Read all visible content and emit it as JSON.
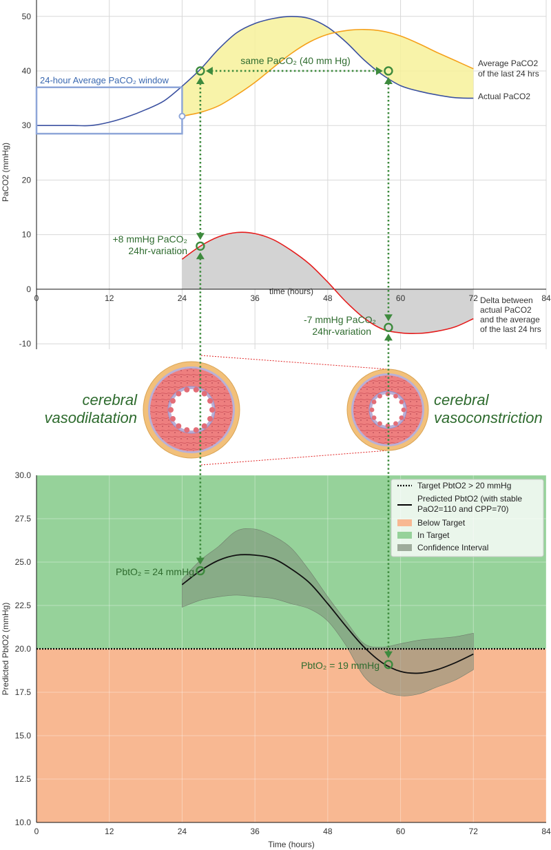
{
  "colors": {
    "actual": "#3a50a0",
    "average": "#f5a01a",
    "band": "#f7f19a",
    "delta": "#e51c1c",
    "delta_fill": "#d3d3d3",
    "ann": "#3d8a3d",
    "in_target": "#96d29a",
    "below_target": "#f8b892",
    "ci": "#7d8c79",
    "window": "#8ea6d8"
  },
  "chart_data": [
    {
      "type": "line",
      "id": "top",
      "xlabel": "time (hours)",
      "ylabel": "PaCO2 (mmHg)",
      "xlim": [
        0,
        84
      ],
      "ylim": [
        -11,
        53
      ],
      "xticks": [
        0,
        12,
        24,
        36,
        48,
        60,
        72,
        84
      ],
      "yticks": [
        -10,
        0,
        10,
        20,
        30,
        40,
        50
      ],
      "series": [
        {
          "name": "Actual PaCO2",
          "x": [
            0,
            3,
            6,
            9,
            12,
            15,
            18,
            21,
            24,
            27,
            30,
            33,
            36,
            39,
            42,
            45,
            48,
            51,
            54,
            57,
            60,
            63,
            66,
            69,
            72
          ],
          "y": [
            30,
            30,
            30,
            30,
            30.6,
            31.6,
            32.9,
            34.5,
            37.2,
            40.3,
            44,
            47,
            48.7,
            49.6,
            50,
            49.6,
            48,
            45.3,
            42,
            39.3,
            37.3,
            36.3,
            35.6,
            35.1,
            35
          ]
        },
        {
          "name": "Average PaCO2 of the last 24 hrs",
          "x": [
            24,
            27,
            30,
            33,
            36,
            39,
            42,
            45,
            48,
            51,
            54,
            57,
            60,
            63,
            66,
            69,
            72
          ],
          "y": [
            31.7,
            32.4,
            33.6,
            35.6,
            37.9,
            40.6,
            43.2,
            45.3,
            46.7,
            47.4,
            47.6,
            47.3,
            46.4,
            45,
            43.4,
            41.9,
            40.4
          ]
        },
        {
          "name": "Delta between actual PaCO2 and the average of the last 24 hrs",
          "x": [
            24,
            27,
            30,
            33,
            36,
            39,
            42,
            45,
            48,
            51,
            54,
            57,
            60,
            63,
            66,
            69,
            72
          ],
          "y": [
            5.5,
            7.9,
            9.6,
            10.4,
            10.2,
            9.1,
            7.1,
            4.6,
            1.3,
            -2.3,
            -5.3,
            -7.3,
            -8,
            -8.1,
            -7.7,
            -6.9,
            -5.4
          ]
        }
      ],
      "window": {
        "x": [
          0,
          24
        ],
        "y": [
          28.5,
          37
        ]
      },
      "labels": {
        "avg_line1": "Average PaCO2",
        "avg_line2": "of the last 24 hrs",
        "actual": "Actual PaCO2",
        "delta_l1": "Delta between",
        "delta_l2": "actual PaCO2",
        "delta_l3": "and the average",
        "delta_l4": "of the last 24 hrs",
        "window": "24-hour Average PaCO₂ window",
        "same": "same PaCO₂ (40 mm Hg)",
        "plus8_l1": "+8 mmHg PaCO₂",
        "plus8_l2": "24hr-variation",
        "minus7_l1": "-7 mmHg PaCO₂",
        "minus7_l2": "24hr-variation"
      },
      "markers": [
        {
          "x": 27,
          "y": 40
        },
        {
          "x": 58,
          "y": 40
        },
        {
          "x": 27,
          "y": 7.9
        },
        {
          "x": 58,
          "y": -7
        }
      ]
    },
    {
      "type": "line",
      "id": "bottom",
      "xlabel": "Time (hours)",
      "ylabel": "Predicted PbtO2 (mmHg)",
      "xlim": [
        0,
        84
      ],
      "ylim": [
        10,
        30
      ],
      "xticks": [
        0,
        12,
        24,
        36,
        48,
        60,
        72,
        84
      ],
      "yticks": [
        10.0,
        12.5,
        15.0,
        17.5,
        20.0,
        22.5,
        25.0,
        27.5,
        30.0
      ],
      "target": 20,
      "series": [
        {
          "name": "Predicted PbtO2 (with stable PaO2=110 and CPP=70)",
          "x": [
            24,
            27,
            30,
            33,
            36,
            39,
            42,
            45,
            48,
            51,
            54,
            57,
            60,
            63,
            66,
            69,
            72
          ],
          "y": [
            23.7,
            24.5,
            25.1,
            25.4,
            25.4,
            25.2,
            24.6,
            23.8,
            22.6,
            21.3,
            20.1,
            19.2,
            18.7,
            18.6,
            18.8,
            19.2,
            19.7
          ]
        }
      ],
      "ci_upper": [
        24,
        25.1,
        25.9,
        26.8,
        26.9,
        26.5,
        25.8,
        24.5,
        23.0,
        21.6,
        20.3,
        20.1,
        20.3,
        20.5,
        20.6,
        20.7,
        20.9
      ],
      "ci_lower": [
        22.4,
        22.8,
        23.0,
        23.1,
        23.0,
        22.9,
        22.6,
        22.3,
        21.6,
        20.2,
        18.4,
        17.6,
        17.3,
        17.4,
        17.8,
        18.2,
        18.8
      ],
      "legend": {
        "placement": "top-right",
        "target": "Target PbtO2 > 20 mmHg",
        "pred_l1": "Predicted PbtO2 (with stable",
        "pred_l2": "PaO2=110 and CPP=70)",
        "below": "Below Target",
        "in": "In Target",
        "ci": "Confidence Interval"
      },
      "markers": [
        {
          "x": 27,
          "y": 24.5
        },
        {
          "x": 58,
          "y": 19.1
        }
      ],
      "labels": {
        "pbt24": "PbtO₂ = 24 mmHg",
        "pbt19": "PbtO₂ = 19 mmHg"
      }
    }
  ],
  "vessels": {
    "dilate": "cerebral vasodilatation",
    "dilate_l1": "cerebral",
    "dilate_l2": "vasodilatation",
    "constrict": "cerebral vasoconstriction",
    "constrict_l1": "cerebral",
    "constrict_l2": "vasoconstriction"
  }
}
